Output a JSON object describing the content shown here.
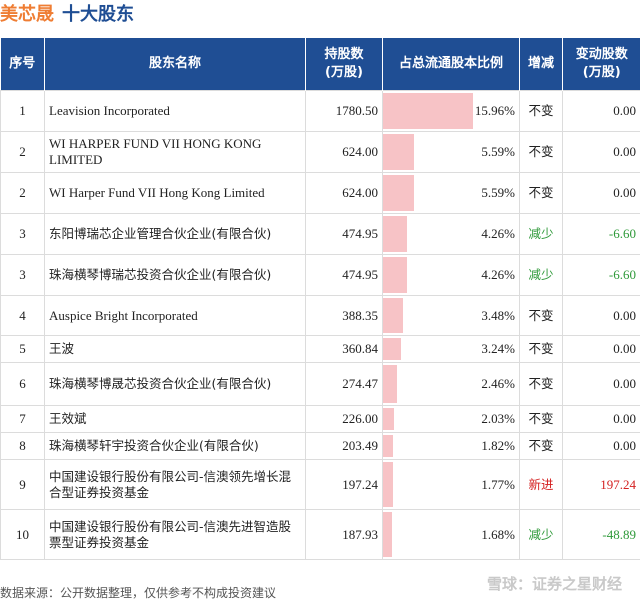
{
  "header": {
    "company": "美芯晟",
    "section": "十大股东"
  },
  "columns": [
    "序号",
    "股东名称",
    "持股数\n(万股)",
    "占总流通股本比例",
    "增减",
    "变动股数\n(万股)"
  ],
  "rows": [
    {
      "idx": "1",
      "name": "Leavision Incorporated",
      "shares": "1780.50",
      "pct": "15.96%",
      "pct_value": 15.96,
      "chg": "不变",
      "chg_color": "#222222",
      "delta": "0.00",
      "delta_color": "#222222"
    },
    {
      "idx": "2",
      "name": "WI HARPER FUND VII HONG KONG LIMITED",
      "shares": "624.00",
      "pct": "5.59%",
      "pct_value": 5.59,
      "chg": "不变",
      "chg_color": "#222222",
      "delta": "0.00",
      "delta_color": "#222222"
    },
    {
      "idx": "2",
      "name": "WI Harper Fund VII Hong Kong Limited",
      "shares": "624.00",
      "pct": "5.59%",
      "pct_value": 5.59,
      "chg": "不变",
      "chg_color": "#222222",
      "delta": "0.00",
      "delta_color": "#222222"
    },
    {
      "idx": "3",
      "name": "东阳博瑞芯企业管理合伙企业(有限合伙)",
      "shares": "474.95",
      "pct": "4.26%",
      "pct_value": 4.26,
      "chg": "减少",
      "chg_color": "#2f9a3a",
      "delta": "-6.60",
      "delta_color": "#2f9a3a"
    },
    {
      "idx": "3",
      "name": "珠海横琴博瑞芯投资合伙企业(有限合伙)",
      "shares": "474.95",
      "pct": "4.26%",
      "pct_value": 4.26,
      "chg": "减少",
      "chg_color": "#2f9a3a",
      "delta": "-6.60",
      "delta_color": "#2f9a3a"
    },
    {
      "idx": "4",
      "name": "Auspice Bright Incorporated",
      "shares": "388.35",
      "pct": "3.48%",
      "pct_value": 3.48,
      "chg": "不变",
      "chg_color": "#222222",
      "delta": "0.00",
      "delta_color": "#222222"
    },
    {
      "idx": "5",
      "name": "王波",
      "shares": "360.84",
      "pct": "3.24%",
      "pct_value": 3.24,
      "chg": "不变",
      "chg_color": "#222222",
      "delta": "0.00",
      "delta_color": "#222222"
    },
    {
      "idx": "6",
      "name": "珠海横琴博晟芯投资合伙企业(有限合伙)",
      "shares": "274.47",
      "pct": "2.46%",
      "pct_value": 2.46,
      "chg": "不变",
      "chg_color": "#222222",
      "delta": "0.00",
      "delta_color": "#222222"
    },
    {
      "idx": "7",
      "name": "王效斌",
      "shares": "226.00",
      "pct": "2.03%",
      "pct_value": 2.03,
      "chg": "不变",
      "chg_color": "#222222",
      "delta": "0.00",
      "delta_color": "#222222"
    },
    {
      "idx": "8",
      "name": "珠海横琴轩宇投资合伙企业(有限合伙)",
      "shares": "203.49",
      "pct": "1.82%",
      "pct_value": 1.82,
      "chg": "不变",
      "chg_color": "#222222",
      "delta": "0.00",
      "delta_color": "#222222"
    },
    {
      "idx": "9",
      "name": "中国建设银行股份有限公司-信澳领先增长混合型证券投资基金",
      "shares": "197.24",
      "pct": "1.77%",
      "pct_value": 1.77,
      "chg": "新进",
      "chg_color": "#d42020",
      "delta": "197.24",
      "delta_color": "#d42020"
    },
    {
      "idx": "10",
      "name": "中国建设银行股份有限公司-信澳先进智造股票型证券投资基金",
      "shares": "187.93",
      "pct": "1.68%",
      "pct_value": 1.68,
      "chg": "减少",
      "chg_color": "#2f9a3a",
      "delta": "-48.89",
      "delta_color": "#2f9a3a"
    }
  ],
  "footer": "数据来源：公开数据整理，仅供参考不构成投资建议",
  "watermark": "雪球：证券之星财经"
}
